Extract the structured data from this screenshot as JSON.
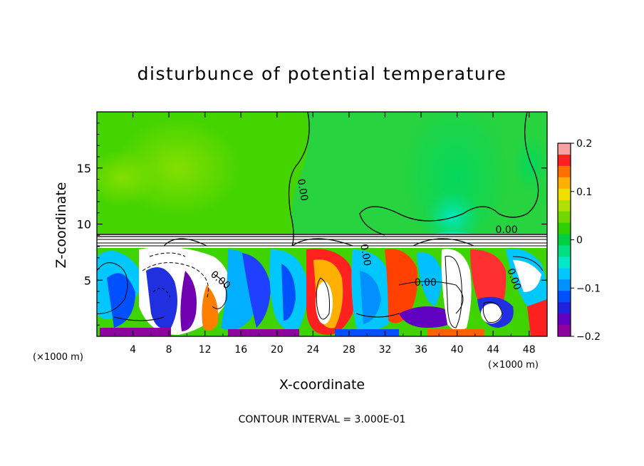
{
  "chart_data": {
    "type": "heatmap",
    "title": "disturbunce of potential temperature",
    "xlabel": "X-coordinate",
    "ylabel": "Z-coordinate",
    "x_unit_left": "(×1000 m)",
    "x_unit_right": "(×1000 m)",
    "xlim": [
      0,
      50
    ],
    "ylim": [
      0,
      20
    ],
    "xticks": [
      4,
      8,
      12,
      16,
      20,
      24,
      28,
      32,
      36,
      40,
      44,
      48
    ],
    "yticks": [
      5,
      10,
      15
    ],
    "contour_labels": [
      {
        "text": "0.00",
        "x": 22.5,
        "z": 13.0,
        "rotation": 80
      },
      {
        "text": "0.00",
        "x": 45.5,
        "z": 9.2,
        "rotation": 0
      },
      {
        "text": "0.00",
        "x": 29.5,
        "z": 7.2,
        "rotation": 80
      },
      {
        "text": "0.00",
        "x": 36.5,
        "z": 4.5,
        "rotation": 0
      },
      {
        "text": "0.00",
        "x": 13.5,
        "z": 4.8,
        "rotation": 40
      },
      {
        "text": "0.00",
        "x": 46.0,
        "z": 5.0,
        "rotation": 70
      }
    ],
    "colorbar": {
      "ticks": [
        "0.2",
        "0.1",
        "0",
        "−0.1",
        "−0.2"
      ],
      "tick_values": [
        0.2,
        0.1,
        0,
        -0.1,
        -0.2
      ],
      "range": [
        -0.2,
        0.2
      ],
      "colors": [
        "#f8a0a0",
        "#ff2020",
        "#ff7000",
        "#ffb000",
        "#f0e000",
        "#b0e000",
        "#70d800",
        "#30d000",
        "#00d040",
        "#00e080",
        "#00e8c8",
        "#00c8ff",
        "#0090ff",
        "#0050ff",
        "#2020e0",
        "#6000c0",
        "#9000a0"
      ]
    },
    "annotation": "CONTOUR INTERVAL = 3.000E-01"
  }
}
